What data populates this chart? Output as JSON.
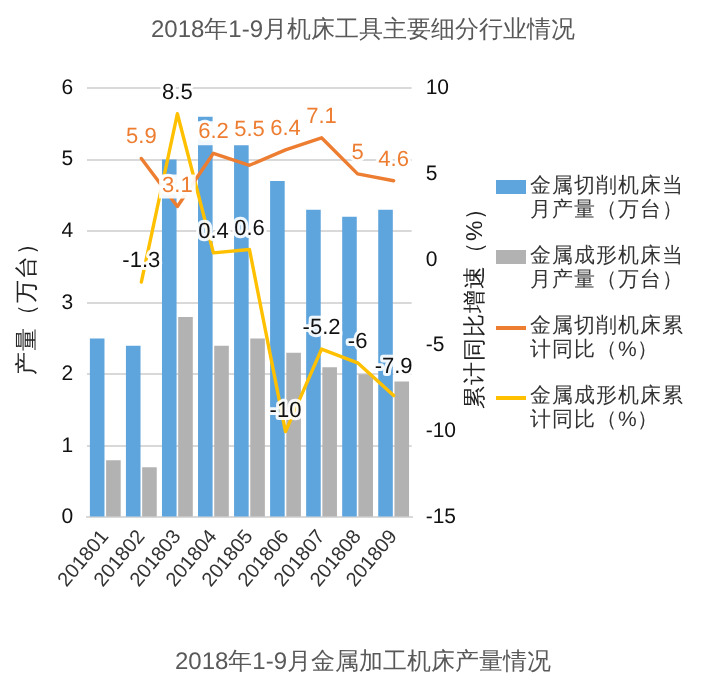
{
  "chart_data": {
    "type": "bar",
    "title": "2018年1-9月机床工具主要细分行业情况",
    "ylabel": "产量（万台）",
    "y2label": "累计同比增速（%）",
    "annotations": [
      "2018年1-9月金属加工机床产量情况"
    ],
    "categories": [
      "201801",
      "201802",
      "201803",
      "201804",
      "201805",
      "201806",
      "201807",
      "201808",
      "201809"
    ],
    "series": [
      {
        "name": "金属切削机床当月产量（万台）",
        "color": "#5fa5dd",
        "values": [
          2.5,
          2.4,
          5.0,
          5.6,
          5.2,
          4.7,
          4.3,
          4.2,
          4.3
        ]
      },
      {
        "name": "金属成形机床当月产量（万台）",
        "color": "#b2b2b2",
        "values": [
          0.8,
          0.7,
          2.8,
          2.4,
          2.5,
          2.3,
          2.1,
          2.0,
          1.9
        ]
      },
      {
        "name": "金属切削机床累计同比（%）",
        "type": "line",
        "axis": "y2",
        "color": "#ed7d31",
        "values": [
          null,
          5.9,
          3.1,
          6.2,
          5.5,
          6.4,
          7.1,
          5,
          4.6
        ],
        "value_labels": [
          null,
          "5.9",
          "3.1",
          "6.2",
          "5.5",
          "6.4",
          "7.1",
          "5",
          "4.6"
        ]
      },
      {
        "name": "金属成形机床累计同比（%）",
        "type": "line",
        "axis": "y2",
        "color": "#ffc000",
        "values": [
          null,
          -1.3,
          8.5,
          0.4,
          0.6,
          -10,
          -5.2,
          -6,
          -7.9
        ],
        "value_labels": [
          null,
          "-1.3",
          "8.5",
          "0.4",
          "0.6",
          "-10",
          "-5.2",
          "-6",
          "-7.9"
        ]
      }
    ],
    "ylim": [
      0,
      6
    ],
    "yticks": [
      0,
      1,
      2,
      3,
      4,
      5,
      6
    ],
    "y2lim": [
      -15,
      10
    ],
    "y2ticks": [
      -15,
      -10,
      -5,
      0,
      5,
      10
    ],
    "grid": "y",
    "legend": "right",
    "marker": "none",
    "line_style": "solid"
  }
}
